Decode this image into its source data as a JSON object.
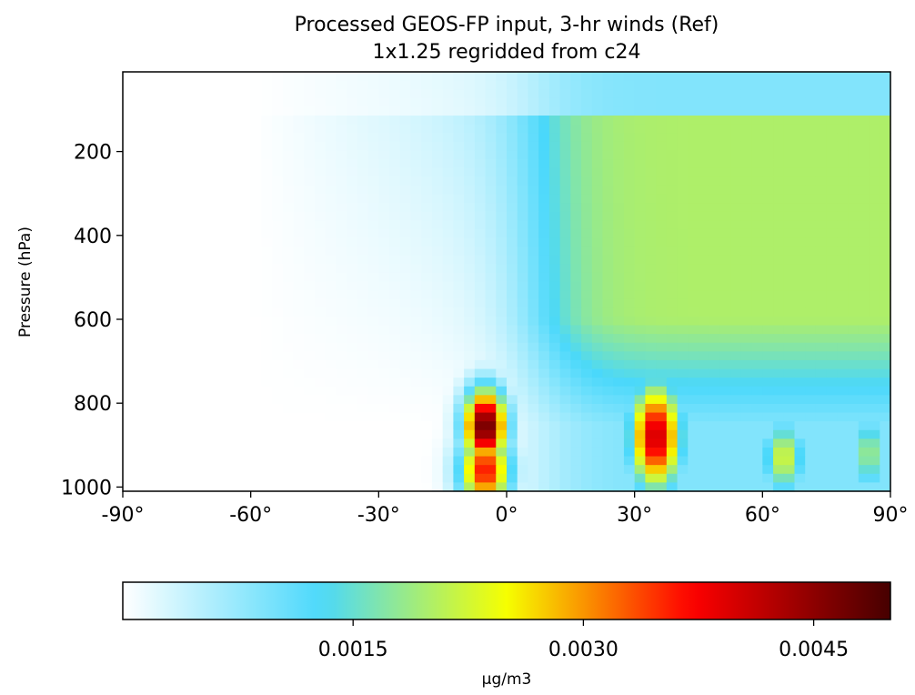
{
  "chart_data": {
    "type": "heatmap",
    "title": "Processed GEOS-FP input, 3-hr winds (Ref)",
    "subtitle": "1x1.25 regridded from c24",
    "xlabel": "",
    "ylabel": "Pressure (hPa)",
    "x_ticks": [
      "-90°",
      "-60°",
      "-30°",
      "0°",
      "30°",
      "60°",
      "90°"
    ],
    "x_tick_values": [
      -90,
      -60,
      -30,
      0,
      30,
      60,
      90
    ],
    "y_ticks": [
      "200",
      "400",
      "600",
      "800",
      "1000"
    ],
    "y_tick_values": [
      200,
      400,
      600,
      800,
      1000
    ],
    "xlim": [
      -90,
      90
    ],
    "ylim": [
      1010,
      10
    ],
    "colormap": "WhGrYlRd",
    "colorbar": {
      "label": "µg/m3",
      "range": [
        0,
        0.005
      ],
      "ticks": [
        "0.0015",
        "0.0030",
        "0.0045"
      ],
      "tick_values": [
        0.0015,
        0.003,
        0.0045
      ],
      "colors": [
        "#ffffff",
        "#4ad8fb",
        "#f6ff00",
        "#ff0000",
        "#460000"
      ]
    },
    "blobs": [
      {
        "lat": -5,
        "lev": 855,
        "value": 0.0049,
        "lat_width": 5,
        "lev_width": 90
      },
      {
        "lat": -5,
        "lev": 960,
        "value": 0.0037,
        "lat_width": 6,
        "lev_width": 90
      },
      {
        "lat": 35,
        "lev": 880,
        "value": 0.0041,
        "lat_width": 6,
        "lev_width": 130
      },
      {
        "lat": 65,
        "lev": 930,
        "value": 0.0023,
        "lat_width": 5,
        "lev_width": 90
      },
      {
        "lat": 85,
        "lev": 920,
        "value": 0.0021,
        "lat_width": 3,
        "lev_width": 90
      }
    ]
  }
}
